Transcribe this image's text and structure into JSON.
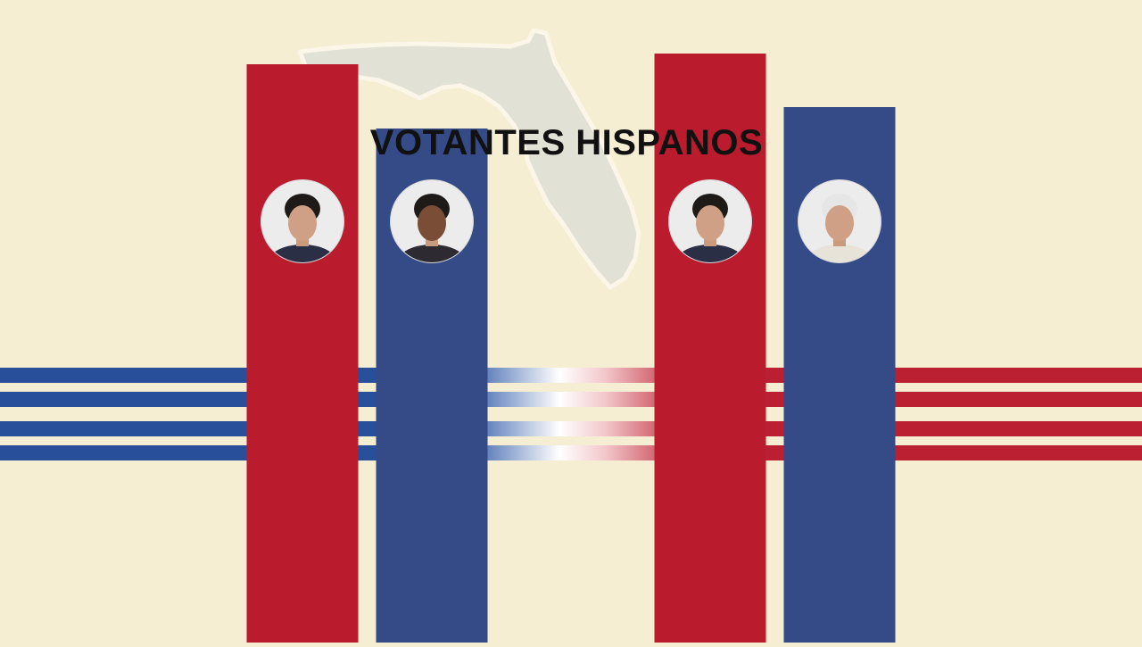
{
  "title": "VOTANTES HISPANOS",
  "colors": {
    "background": "#f5eed2",
    "republican": "#ba1b2d",
    "democrat": "#344b88",
    "stripe_blue": "#274f9a",
    "stripe_red": "#bb1f32",
    "state_fill": "#e1e1d6",
    "state_outline": "#fbf6e8"
  },
  "map": {
    "state": "Florida"
  },
  "chart_data": {
    "type": "bar",
    "title": "VOTANTES HISPANOS",
    "xlabel": "",
    "ylabel": "",
    "categories": [
      "",
      "",
      "",
      ""
    ],
    "values": [
      54,
      48,
      55,
      50
    ],
    "ylim": [
      0,
      60
    ],
    "party": [
      "R",
      "D",
      "R",
      "D"
    ],
    "portraits": [
      {
        "icon": "candidate-portrait",
        "suit": "#2a2f45"
      },
      {
        "icon": "candidate-portrait",
        "suit": "#2d2a32"
      },
      {
        "icon": "candidate-portrait",
        "suit": "#2a2f45"
      },
      {
        "icon": "candidate-portrait",
        "suit": "#e7e3d8"
      }
    ],
    "grid": false,
    "legend": "none"
  }
}
